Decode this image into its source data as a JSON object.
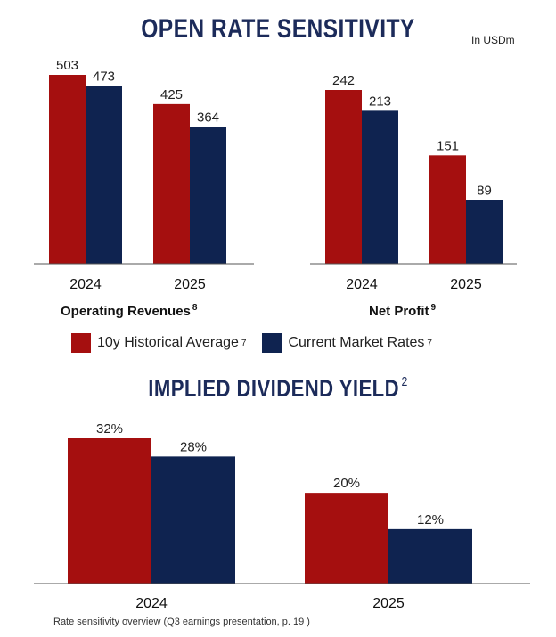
{
  "header": {
    "title": "OPEN RATE SENSITIVITY",
    "unit": "In USDm"
  },
  "legend": {
    "hist": {
      "label": "10y Historical Average",
      "sup": "7",
      "color": "#a50f0f"
    },
    "curr": {
      "label": "Current Market Rates",
      "sup": "7",
      "color": "#0f2350"
    }
  },
  "section2": {
    "title": "IMPLIED DIVIDEND YIELD",
    "sup": "2"
  },
  "footnote": "Rate sensitivity overview (Q3 earnings presentation, p. 19 )",
  "chart_data": [
    {
      "type": "bar",
      "title": "Operating Revenues",
      "title_sup": "8",
      "categories": [
        "2024",
        "2025"
      ],
      "series": [
        {
          "name": "10y Historical Average",
          "values": [
            503,
            425
          ],
          "labels": [
            "503",
            "425"
          ],
          "color": "#a50f0f"
        },
        {
          "name": "Current Market Rates",
          "values": [
            473,
            364
          ],
          "labels": [
            "473",
            "364"
          ],
          "color": "#0f2350"
        }
      ],
      "grid": false
    },
    {
      "type": "bar",
      "title": "Net Profit",
      "title_sup": "9",
      "categories": [
        "2024",
        "2025"
      ],
      "series": [
        {
          "name": "10y Historical Average",
          "values": [
            242,
            151
          ],
          "labels": [
            "242",
            "151"
          ],
          "color": "#a50f0f"
        },
        {
          "name": "Current Market Rates",
          "values": [
            213,
            89
          ],
          "labels": [
            "213",
            "89"
          ],
          "color": "#0f2350"
        }
      ],
      "grid": false
    },
    {
      "type": "bar",
      "title": "IMPLIED DIVIDEND YIELD",
      "categories": [
        "2024",
        "2025"
      ],
      "series": [
        {
          "name": "10y Historical Average",
          "values": [
            32,
            20
          ],
          "labels": [
            "32%",
            "20%"
          ],
          "color": "#a50f0f"
        },
        {
          "name": "Current Market Rates",
          "values": [
            28,
            12
          ],
          "labels": [
            "28%",
            "12%"
          ],
          "color": "#0f2350"
        }
      ],
      "grid": false
    }
  ]
}
